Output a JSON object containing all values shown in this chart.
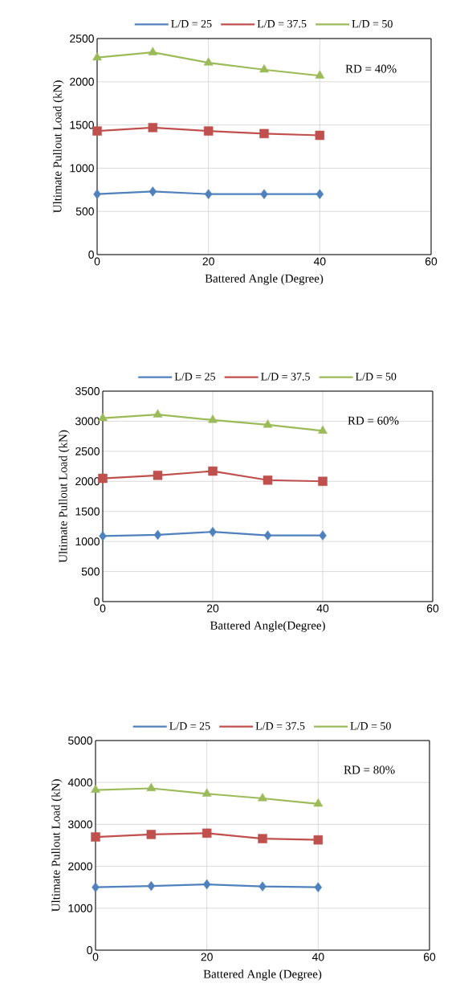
{
  "chart_data": [
    {
      "type": "line",
      "xlabel": "Battered Angle (Degree)",
      "ylabel": "Ultimate Pullout Load  (kN)",
      "annotations": [
        "RD = 40%"
      ],
      "x": [
        0,
        10,
        20,
        30,
        40
      ],
      "xlim": [
        0,
        60
      ],
      "xticks": [
        0,
        20,
        40,
        60
      ],
      "ylim": [
        0,
        2500
      ],
      "yticks": [
        0,
        500,
        1000,
        1500,
        2000,
        2500
      ],
      "grid": true,
      "legend": "top",
      "series": [
        {
          "name": "L/D = 25",
          "color": "#4f81bd",
          "marker": "diamond",
          "values": [
            700,
            730,
            700,
            700,
            700
          ]
        },
        {
          "name": "L/D = 37.5",
          "color": "#c0504d",
          "marker": "square",
          "values": [
            1430,
            1470,
            1430,
            1400,
            1380
          ]
        },
        {
          "name": "L/D = 50",
          "color": "#9bbb59",
          "marker": "triangle",
          "values": [
            2280,
            2340,
            2220,
            2140,
            2070
          ]
        }
      ]
    },
    {
      "type": "line",
      "xlabel": "Battered Angle(Degree)",
      "ylabel": "Ultimate Pullout Load (kN)",
      "annotations": [
        "RD = 60%"
      ],
      "x": [
        0,
        10,
        20,
        30,
        40
      ],
      "xlim": [
        0,
        60
      ],
      "xticks": [
        0,
        20,
        40,
        60
      ],
      "ylim": [
        0,
        3500
      ],
      "yticks": [
        0,
        500,
        1000,
        1500,
        2000,
        2500,
        3000,
        3500
      ],
      "grid": true,
      "legend": "top",
      "series": [
        {
          "name": "L/D = 25",
          "color": "#4f81bd",
          "marker": "diamond",
          "values": [
            1090,
            1110,
            1160,
            1100,
            1100
          ]
        },
        {
          "name": "L/D = 37.5",
          "color": "#c0504d",
          "marker": "square",
          "values": [
            2050,
            2100,
            2170,
            2020,
            2000
          ]
        },
        {
          "name": "L/D = 50",
          "color": "#9bbb59",
          "marker": "triangle",
          "values": [
            3050,
            3110,
            3020,
            2940,
            2840
          ]
        }
      ]
    },
    {
      "type": "line",
      "xlabel": "Battered Angle (Degree)",
      "ylabel": "Ultimate Pullout Load (kN)",
      "annotations": [
        "RD = 80%"
      ],
      "x": [
        0,
        10,
        20,
        30,
        40
      ],
      "xlim": [
        0,
        60
      ],
      "xticks": [
        0,
        20,
        40,
        60
      ],
      "ylim": [
        0,
        5000
      ],
      "yticks": [
        0,
        1000,
        2000,
        3000,
        4000,
        5000
      ],
      "grid": true,
      "legend": "top",
      "series": [
        {
          "name": "L/D = 25",
          "color": "#4f81bd",
          "marker": "diamond",
          "values": [
            1500,
            1530,
            1570,
            1520,
            1500
          ]
        },
        {
          "name": "L/D = 37.5",
          "color": "#c0504d",
          "marker": "square",
          "values": [
            2700,
            2760,
            2790,
            2660,
            2630
          ]
        },
        {
          "name": "L/D = 50",
          "color": "#9bbb59",
          "marker": "triangle",
          "values": [
            3820,
            3860,
            3730,
            3620,
            3490
          ]
        }
      ]
    }
  ]
}
